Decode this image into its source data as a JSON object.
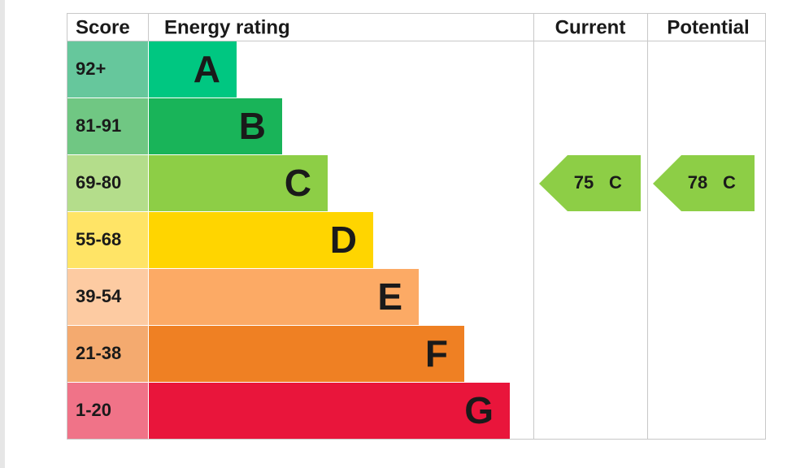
{
  "header": {
    "score": "Score",
    "rating": "Energy rating",
    "current": "Current",
    "potential": "Potential"
  },
  "rows": [
    {
      "score": "92+",
      "letter": "A",
      "color": "#00c781",
      "score_color": "#66c79c"
    },
    {
      "score": "81-91",
      "letter": "B",
      "color": "#19b459",
      "score_color": "#70c783"
    },
    {
      "score": "69-80",
      "letter": "C",
      "color": "#8dce46",
      "score_color": "#b4dd8b"
    },
    {
      "score": "55-68",
      "letter": "D",
      "color": "#ffd500",
      "score_color": "#ffe466"
    },
    {
      "score": "39-54",
      "letter": "E",
      "color": "#fcaa65",
      "score_color": "#fdcba2"
    },
    {
      "score": "21-38",
      "letter": "F",
      "color": "#ef8023",
      "score_color": "#f4aa6f"
    },
    {
      "score": "1-20",
      "letter": "G",
      "color": "#e9153b",
      "score_color": "#f07388"
    }
  ],
  "current": {
    "score": "75",
    "letter": "C"
  },
  "potential": {
    "score": "78",
    "letter": "C"
  }
}
